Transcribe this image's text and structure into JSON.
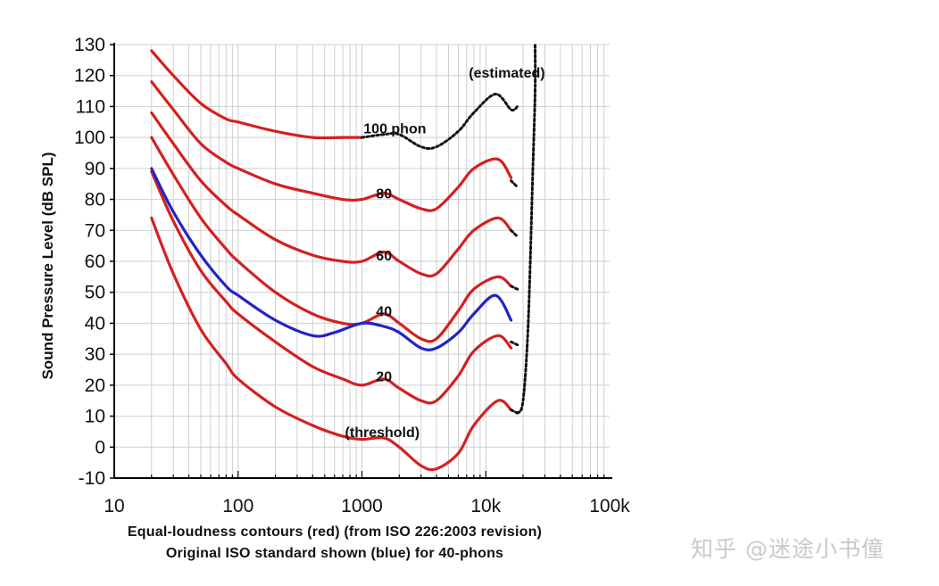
{
  "chart_data": {
    "type": "line",
    "title": "",
    "ylabel": "Sound Pressure Level (dB SPL)",
    "xlabel_line1": "Equal-loudness contours (red) (from ISO 226:2003 revision)",
    "xlabel_line2": "Original ISO standard shown (blue) for 40-phons",
    "x_scale": "log",
    "xlim": [
      10,
      100000
    ],
    "ylim": [
      -10,
      130
    ],
    "grid": true,
    "x_tick_labels": [
      "10",
      "100",
      "1000",
      "10k",
      "100k"
    ],
    "x_ticks": [
      10,
      100,
      1000,
      10000,
      100000
    ],
    "y_ticks": [
      -10,
      0,
      10,
      20,
      30,
      40,
      50,
      60,
      70,
      80,
      90,
      100,
      110,
      120,
      130
    ],
    "colors": {
      "iso226": "#d42020",
      "original": "#2323c8",
      "estimated": "#111111"
    },
    "series": [
      {
        "name": "threshold",
        "color": "iso226",
        "x": [
          20,
          30,
          50,
          80,
          100,
          200,
          400,
          700,
          1000,
          1500,
          2000,
          3000,
          4000,
          6000,
          8000,
          12500,
          16000
        ],
        "y": [
          74,
          56,
          38,
          27,
          22,
          13,
          7,
          3.5,
          2.5,
          3,
          0,
          -6,
          -7,
          -2,
          7,
          15,
          12
        ]
      },
      {
        "name": "20",
        "color": "iso226",
        "x": [
          20,
          30,
          50,
          80,
          100,
          200,
          400,
          700,
          1000,
          1500,
          2000,
          3000,
          4000,
          6000,
          8000,
          12500,
          16000
        ],
        "y": [
          89,
          73,
          57,
          47,
          43,
          34,
          26,
          22,
          20,
          22,
          19,
          15,
          15,
          23,
          31,
          36,
          32
        ]
      },
      {
        "name": "40",
        "color": "iso226",
        "x": [
          20,
          30,
          50,
          80,
          100,
          200,
          400,
          700,
          1000,
          1500,
          2000,
          3000,
          4000,
          6000,
          8000,
          12500,
          16000
        ],
        "y": [
          100,
          88,
          74,
          64,
          60,
          50,
          43,
          40,
          40,
          43,
          40,
          35,
          35,
          44,
          51,
          55,
          52
        ]
      },
      {
        "name": "60",
        "color": "iso226",
        "x": [
          20,
          30,
          50,
          80,
          100,
          200,
          400,
          700,
          1000,
          1500,
          2000,
          3000,
          4000,
          6000,
          8000,
          12500,
          16000
        ],
        "y": [
          108,
          98,
          86,
          78,
          75,
          67,
          62,
          60,
          60,
          63,
          60,
          56,
          56,
          64,
          70,
          74,
          70
        ]
      },
      {
        "name": "80",
        "color": "iso226",
        "x": [
          20,
          30,
          50,
          80,
          100,
          200,
          400,
          700,
          1000,
          1500,
          2000,
          3000,
          4000,
          6000,
          8000,
          12500,
          16000
        ],
        "y": [
          118,
          109,
          98,
          92,
          90,
          85,
          82,
          80,
          80,
          82,
          80,
          77,
          77,
          84,
          90,
          93,
          87
        ]
      },
      {
        "name": "100",
        "color": "iso226",
        "x": [
          20,
          30,
          50,
          80,
          100,
          200,
          400,
          700,
          1000
        ],
        "y": [
          128,
          120,
          111,
          106,
          105,
          102,
          100,
          100,
          100
        ]
      },
      {
        "name": "100 phon (estimated)",
        "color": "estimated",
        "dashed": true,
        "x": [
          1000,
          1500,
          2000,
          3000,
          4000,
          6000,
          8000,
          12000,
          16000,
          18000
        ],
        "y": [
          100,
          101,
          101,
          97,
          97,
          102,
          108,
          114,
          109,
          110
        ]
      },
      {
        "name": "estimated tails",
        "color": "estimated",
        "dashed": true,
        "segments": [
          {
            "x": [
              16000,
              18000
            ],
            "y": [
              86,
              84
            ]
          },
          {
            "x": [
              16000,
              18000
            ],
            "y": [
              70,
              68
            ]
          },
          {
            "x": [
              16000,
              18000
            ],
            "y": [
              52,
              51
            ]
          },
          {
            "x": [
              16000,
              18000
            ],
            "y": [
              34,
              33
            ]
          },
          {
            "x": [
              16000,
              18000
            ],
            "y": [
              12,
              11
            ]
          },
          {
            "x": [
              18000,
              20000,
              22000,
              24000,
              25000,
              25000
            ],
            "y": [
              11,
              15,
              40,
              90,
              115,
              130
            ]
          }
        ]
      },
      {
        "name": "original ISO 40-phons",
        "color": "original",
        "x": [
          20,
          30,
          50,
          80,
          100,
          200,
          400,
          600,
          1000,
          1500,
          2000,
          3000,
          4000,
          6000,
          8000,
          12000,
          16000
        ],
        "y": [
          90,
          76,
          62,
          52,
          49,
          41,
          36,
          37,
          40,
          39,
          37,
          32,
          32,
          37,
          43,
          49,
          41
        ]
      }
    ],
    "annotations": [
      {
        "text": "(estimated)",
        "x": 7300,
        "y": 121
      },
      {
        "text": "100 phon",
        "x": 1030,
        "y": 103
      },
      {
        "text": "80",
        "x": 1300,
        "y": 82
      },
      {
        "text": "60",
        "x": 1300,
        "y": 62
      },
      {
        "text": "40",
        "x": 1300,
        "y": 44
      },
      {
        "text": "20",
        "x": 1300,
        "y": 23
      },
      {
        "text": "(threshold)",
        "x": 730,
        "y": 5
      }
    ]
  },
  "watermark": "知乎 @迷途小书僮"
}
